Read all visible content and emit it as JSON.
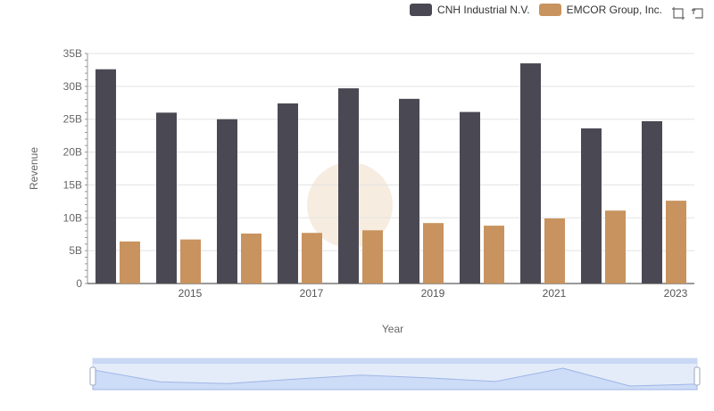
{
  "chart_data": {
    "type": "bar",
    "x": [
      2014,
      2015,
      2016,
      2017,
      2018,
      2019,
      2020,
      2021,
      2022,
      2023
    ],
    "categories": [
      "2014",
      "2015",
      "2016",
      "2017",
      "2018",
      "2019",
      "2020",
      "2021",
      "2022",
      "2023"
    ],
    "x_tick_labels": [
      "2015",
      "2017",
      "2019",
      "2021",
      "2023"
    ],
    "series": [
      {
        "name": "CNH Industrial N.V.",
        "color": "#4a4953",
        "values": [
          32.6,
          26.0,
          25.0,
          27.4,
          29.7,
          28.1,
          26.1,
          33.5,
          23.6,
          24.7
        ]
      },
      {
        "name": "EMCOR Group, Inc.",
        "color": "#c8935e",
        "values": [
          6.4,
          6.7,
          7.6,
          7.7,
          8.1,
          9.2,
          8.8,
          9.9,
          11.1,
          12.6
        ]
      }
    ],
    "ylabel": "Revenue",
    "xlabel": "Year",
    "ylim": [
      0,
      35
    ],
    "y_ticks": [
      0,
      5,
      10,
      15,
      20,
      25,
      30,
      35
    ],
    "y_tick_labels": [
      "0",
      "5B",
      "10B",
      "15B",
      "20B",
      "25B",
      "30B",
      "35B"
    ],
    "grid": true,
    "legend_position": "top-right"
  },
  "toolbox": {
    "zoom_icon": "zoom-icon",
    "restore_icon": "restore-icon"
  }
}
